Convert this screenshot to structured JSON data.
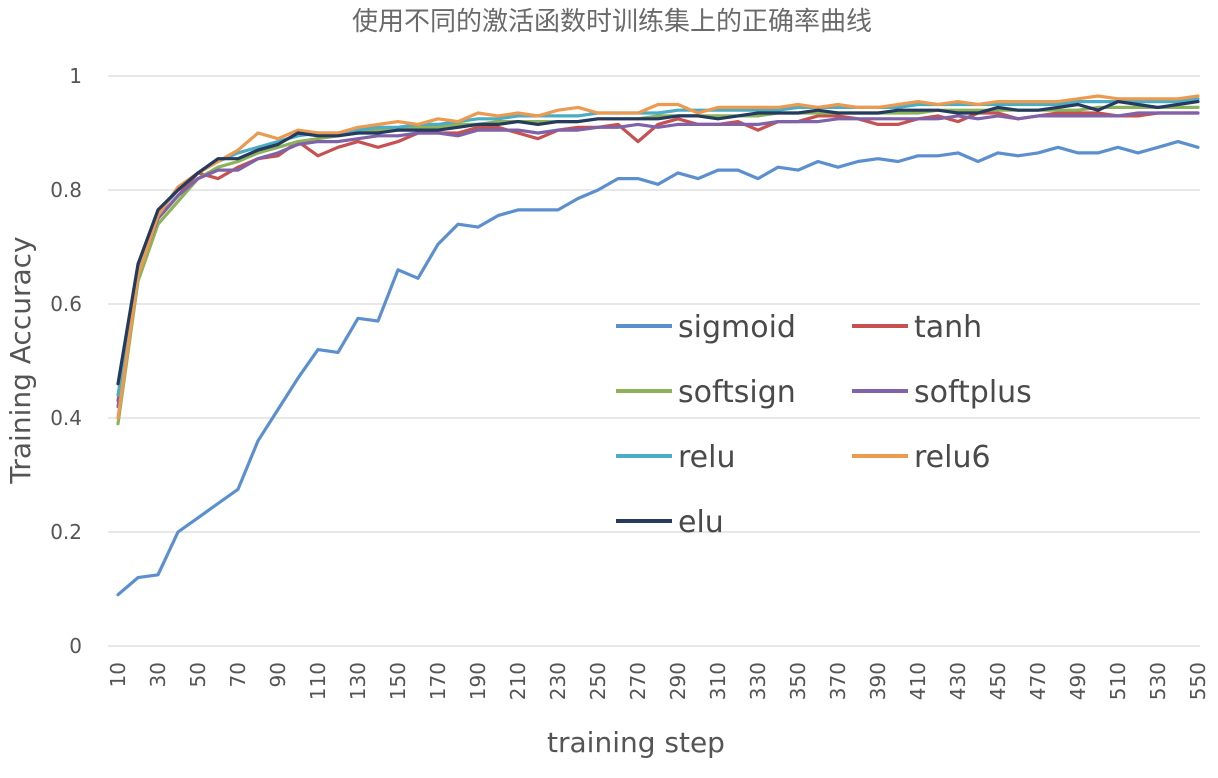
{
  "chart_data": {
    "type": "line",
    "title": "使用不同的激活函数时训练集上的正确率曲线",
    "xlabel": "training step",
    "ylabel": "Training  Accuracy",
    "ylim": [
      0,
      1
    ],
    "yticks": [
      0,
      0.2,
      0.4,
      0.6,
      0.8,
      1
    ],
    "ytick_labels": [
      "0",
      "0.2",
      "0.4",
      "0.6",
      "0.8",
      "1"
    ],
    "grid": true,
    "legend_position": "center-right",
    "x": [
      10,
      20,
      30,
      40,
      50,
      60,
      70,
      80,
      90,
      100,
      110,
      120,
      130,
      140,
      150,
      160,
      170,
      180,
      190,
      200,
      210,
      220,
      230,
      240,
      250,
      260,
      270,
      280,
      290,
      300,
      310,
      320,
      330,
      340,
      350,
      360,
      370,
      380,
      390,
      400,
      410,
      420,
      430,
      440,
      450,
      460,
      470,
      480,
      490,
      500,
      510,
      520,
      530,
      540,
      550
    ],
    "xtick_labels": [
      "10",
      "30",
      "50",
      "70",
      "90",
      "110",
      "130",
      "150",
      "170",
      "190",
      "210",
      "230",
      "250",
      "270",
      "290",
      "310",
      "330",
      "350",
      "370",
      "390",
      "410",
      "430",
      "450",
      "470",
      "490",
      "510",
      "530",
      "550"
    ],
    "series": [
      {
        "name": "sigmoid",
        "color": "#5b8fce",
        "values": [
          0.09,
          0.12,
          0.125,
          0.2,
          0.225,
          0.25,
          0.275,
          0.36,
          0.415,
          0.47,
          0.52,
          0.515,
          0.575,
          0.57,
          0.66,
          0.645,
          0.705,
          0.74,
          0.735,
          0.755,
          0.765,
          0.765,
          0.765,
          0.785,
          0.8,
          0.82,
          0.82,
          0.81,
          0.83,
          0.82,
          0.835,
          0.835,
          0.82,
          0.84,
          0.835,
          0.85,
          0.84,
          0.85,
          0.855,
          0.85,
          0.86,
          0.86,
          0.865,
          0.85,
          0.865,
          0.86,
          0.865,
          0.875,
          0.865,
          0.865,
          0.875,
          0.865,
          0.875,
          0.885,
          0.875
        ]
      },
      {
        "name": "tanh",
        "color": "#c65150",
        "values": [
          0.43,
          0.65,
          0.75,
          0.79,
          0.83,
          0.82,
          0.84,
          0.855,
          0.86,
          0.885,
          0.86,
          0.875,
          0.885,
          0.875,
          0.885,
          0.9,
          0.9,
          0.9,
          0.91,
          0.91,
          0.9,
          0.89,
          0.905,
          0.91,
          0.91,
          0.915,
          0.885,
          0.915,
          0.925,
          0.915,
          0.915,
          0.92,
          0.905,
          0.92,
          0.92,
          0.93,
          0.93,
          0.925,
          0.915,
          0.915,
          0.925,
          0.93,
          0.92,
          0.935,
          0.935,
          0.925,
          0.93,
          0.935,
          0.935,
          0.935,
          0.93,
          0.93,
          0.935,
          0.935,
          0.935
        ]
      },
      {
        "name": "softsign",
        "color": "#8cb35a",
        "values": [
          0.39,
          0.64,
          0.74,
          0.78,
          0.82,
          0.84,
          0.85,
          0.865,
          0.875,
          0.885,
          0.89,
          0.895,
          0.9,
          0.905,
          0.905,
          0.91,
          0.91,
          0.915,
          0.915,
          0.92,
          0.92,
          0.92,
          0.92,
          0.92,
          0.925,
          0.925,
          0.925,
          0.93,
          0.93,
          0.93,
          0.93,
          0.93,
          0.93,
          0.935,
          0.935,
          0.935,
          0.935,
          0.935,
          0.935,
          0.935,
          0.935,
          0.94,
          0.94,
          0.94,
          0.94,
          0.94,
          0.94,
          0.94,
          0.94,
          0.945,
          0.945,
          0.945,
          0.945,
          0.945,
          0.945
        ]
      },
      {
        "name": "softplus",
        "color": "#7f62a8",
        "values": [
          0.42,
          0.655,
          0.75,
          0.79,
          0.82,
          0.835,
          0.835,
          0.855,
          0.865,
          0.88,
          0.885,
          0.885,
          0.89,
          0.895,
          0.895,
          0.9,
          0.9,
          0.895,
          0.905,
          0.905,
          0.905,
          0.9,
          0.905,
          0.905,
          0.91,
          0.91,
          0.915,
          0.91,
          0.915,
          0.915,
          0.915,
          0.915,
          0.915,
          0.92,
          0.92,
          0.92,
          0.925,
          0.925,
          0.925,
          0.925,
          0.925,
          0.925,
          0.93,
          0.925,
          0.93,
          0.925,
          0.93,
          0.93,
          0.93,
          0.93,
          0.93,
          0.935,
          0.935,
          0.935,
          0.935
        ]
      },
      {
        "name": "relu",
        "color": "#4bacc6",
        "values": [
          0.44,
          0.66,
          0.76,
          0.8,
          0.83,
          0.85,
          0.865,
          0.875,
          0.885,
          0.895,
          0.9,
          0.9,
          0.905,
          0.91,
          0.91,
          0.915,
          0.915,
          0.92,
          0.925,
          0.925,
          0.93,
          0.93,
          0.93,
          0.93,
          0.935,
          0.935,
          0.935,
          0.935,
          0.94,
          0.94,
          0.94,
          0.94,
          0.94,
          0.94,
          0.945,
          0.945,
          0.945,
          0.945,
          0.945,
          0.945,
          0.95,
          0.95,
          0.95,
          0.95,
          0.95,
          0.95,
          0.95,
          0.95,
          0.955,
          0.955,
          0.955,
          0.955,
          0.955,
          0.955,
          0.96
        ]
      },
      {
        "name": "relu6",
        "color": "#eb9a50",
        "values": [
          0.4,
          0.65,
          0.755,
          0.805,
          0.83,
          0.85,
          0.87,
          0.9,
          0.89,
          0.905,
          0.9,
          0.9,
          0.91,
          0.915,
          0.92,
          0.915,
          0.925,
          0.92,
          0.935,
          0.93,
          0.935,
          0.93,
          0.94,
          0.945,
          0.935,
          0.935,
          0.935,
          0.95,
          0.95,
          0.935,
          0.945,
          0.945,
          0.945,
          0.945,
          0.95,
          0.945,
          0.95,
          0.945,
          0.945,
          0.95,
          0.955,
          0.95,
          0.955,
          0.95,
          0.955,
          0.955,
          0.955,
          0.955,
          0.96,
          0.965,
          0.96,
          0.96,
          0.96,
          0.96,
          0.965
        ]
      },
      {
        "name": "elu",
        "color": "#243a5e",
        "values": [
          0.46,
          0.67,
          0.765,
          0.8,
          0.83,
          0.855,
          0.855,
          0.87,
          0.88,
          0.9,
          0.895,
          0.895,
          0.9,
          0.9,
          0.905,
          0.905,
          0.905,
          0.91,
          0.915,
          0.915,
          0.92,
          0.915,
          0.92,
          0.92,
          0.925,
          0.925,
          0.925,
          0.925,
          0.93,
          0.93,
          0.925,
          0.93,
          0.935,
          0.935,
          0.935,
          0.94,
          0.935,
          0.935,
          0.935,
          0.94,
          0.94,
          0.94,
          0.935,
          0.935,
          0.945,
          0.94,
          0.94,
          0.945,
          0.95,
          0.94,
          0.955,
          0.95,
          0.945,
          0.95,
          0.955
        ]
      }
    ]
  }
}
